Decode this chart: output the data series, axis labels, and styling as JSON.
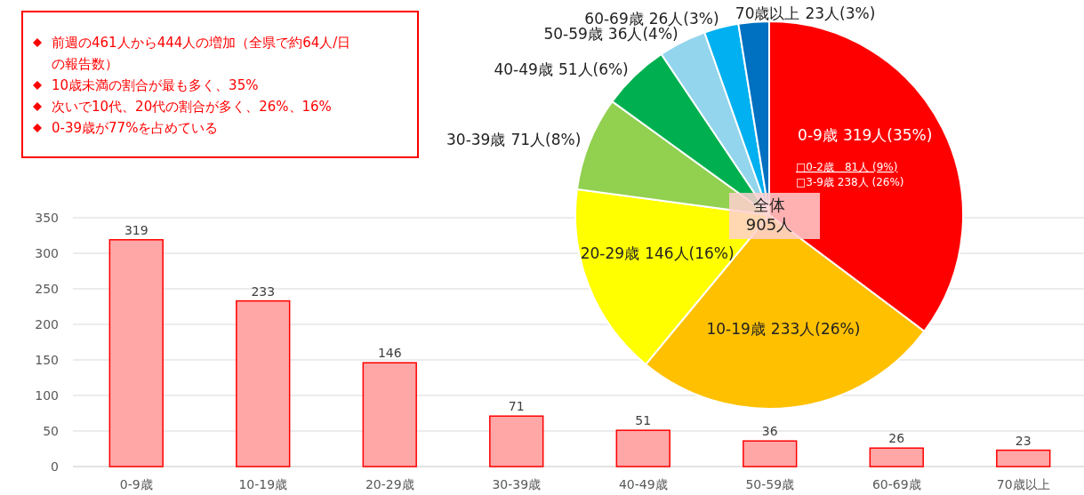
{
  "chart_data": [
    {
      "type": "bar",
      "categories": [
        "0-9歳",
        "10-19歳",
        "20-29歳",
        "30-39歳",
        "40-49歳",
        "50-59歳",
        "60-69歳",
        "70歳以上"
      ],
      "values": [
        319,
        233,
        146,
        71,
        51,
        36,
        26,
        23
      ],
      "color": "#ffa6a6",
      "ylim": [
        0,
        350
      ],
      "yticks": [
        0,
        50,
        100,
        150,
        200,
        250,
        300,
        350
      ],
      "grid": "y",
      "data_labels": true,
      "annotations": [
        "前週の461人から444人の増加（全県で約64人/日の報告数）",
        "10歳未満の割合が最も多く、35%",
        "次いで10代、20代の割合が多く、26%、16%",
        "0-39歳が77%を占めている"
      ]
    },
    {
      "type": "pie",
      "categories": [
        "0-9歳",
        "10-19歳",
        "20-29歳",
        "30-39歳",
        "40-49歳",
        "50-59歳",
        "60-69歳",
        "70歳以上"
      ],
      "values": [
        319,
        233,
        146,
        71,
        51,
        36,
        26,
        23
      ],
      "colors": [
        "#ff0000",
        "#ffc000",
        "#ffff00",
        "#92d050",
        "#00b050",
        "#93d5ec",
        "#00b0f0",
        "#0070c0"
      ],
      "value_labels": [
        "319人(35%)",
        "233人(26%)",
        "146人(16%)",
        "71人(8%)",
        "51人(6%)",
        "36人(4%)",
        "26人(3%)",
        "23人(3%)"
      ],
      "annotations": [
        "□0-2歳　81人 (9%)",
        "□3-9歳 238人 (26%)",
        "全体\n905人"
      ]
    }
  ]
}
